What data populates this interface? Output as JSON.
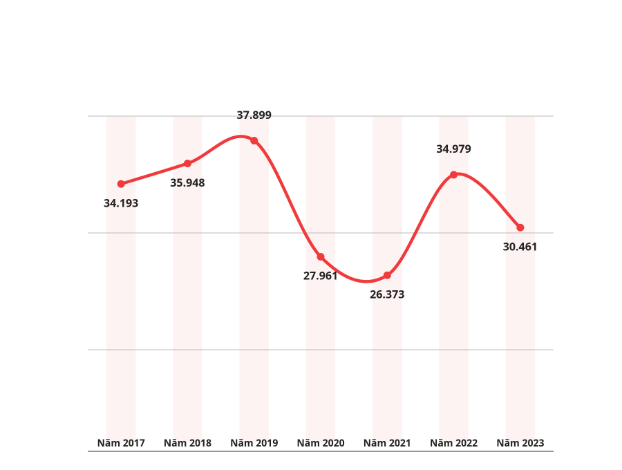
{
  "chart_data": {
    "type": "line",
    "categories": [
      "Năm 2017",
      "Năm 2018",
      "Năm 2019",
      "Năm 2020",
      "Năm 2021",
      "Năm 2022",
      "Năm 2023"
    ],
    "values": [
      34193,
      35948,
      37899,
      27961,
      26373,
      34979,
      30461
    ],
    "value_labels": [
      "34.193",
      "35.948",
      "37.899",
      "27.961",
      "26.373",
      "34.979",
      "30.461"
    ],
    "color": "#f03a3c",
    "ylim": [
      11300,
      40000
    ],
    "yticks": [
      20000,
      30000,
      40000
    ],
    "grid": true
  }
}
